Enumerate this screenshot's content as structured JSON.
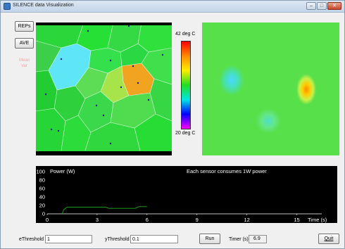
{
  "window": {
    "title": "SILENCE data Visualization",
    "controls": [
      "–",
      "□",
      "✕"
    ]
  },
  "sidebar": {
    "reps_label": "REPs",
    "ave_label": "AVE",
    "mean_var_label": "Mean\nVar"
  },
  "colorbar": {
    "max_label": "42 deg C",
    "min_label": "20 deg C"
  },
  "colors": {
    "map_base": "#22dd33",
    "heatmap_base": "#58e04a",
    "plot_line": "#22aa22"
  },
  "power_plot": {
    "annotation": "Each sensor consumes 1W power",
    "chart_data": {
      "type": "line",
      "title": "",
      "ylabel": "Power (W)",
      "xlabel": "Time (s)",
      "xlim": [
        0,
        16.5
      ],
      "ylim": [
        0,
        100
      ],
      "x_ticks": [
        "0",
        "3",
        "6",
        "9",
        "12",
        "15"
      ],
      "y_ticks": [
        "0",
        "20",
        "40",
        "60",
        "80",
        "100"
      ],
      "series": [
        {
          "name": "",
          "x": [
            0.9,
            1.0,
            1.2,
            3.5,
            3.7,
            5.3,
            5.5,
            6.0
          ],
          "y": [
            0,
            10,
            16,
            16,
            13,
            13,
            17,
            17
          ]
        }
      ]
    }
  },
  "bottom_bar": {
    "e_threshold_label": "eThreshold",
    "e_threshold_value": "1",
    "y_threshold_label": "yThreshold",
    "y_threshold_value": "0.1",
    "run_label": "Run",
    "timer_label": "Timer (s)",
    "timer_value": "6.9",
    "quit_label": "Quit"
  }
}
